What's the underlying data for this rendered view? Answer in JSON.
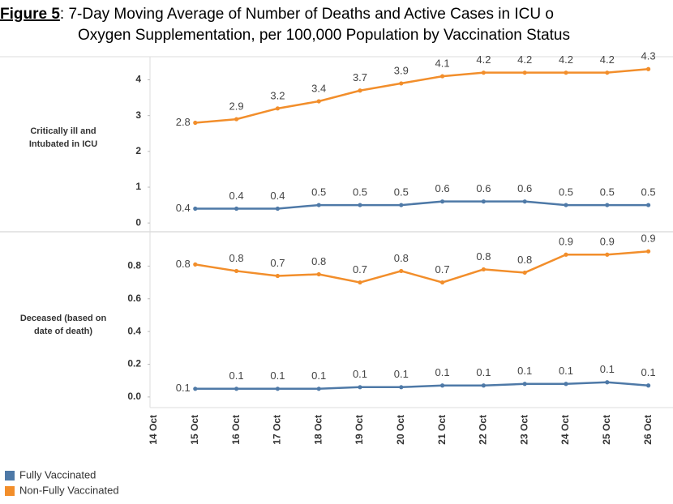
{
  "figure": {
    "label": "Figure 5",
    "title": [
      ": 7-Day Moving Average of Number of Deaths and Active Cases in ICU o",
      "Oxygen Supplementation, per 100,000 Population by Vaccination Status"
    ]
  },
  "chart_data": [
    {
      "type": "line",
      "title": [
        "Critically ill and",
        "Intubated in ICU"
      ],
      "ylim": [
        -0.2,
        4.6
      ],
      "yticks": [
        0,
        1,
        2,
        3,
        4
      ],
      "series": [
        {
          "name": "Fully Vaccinated",
          "color": "#4e79a7",
          "values": [
            null,
            0.4,
            0.4,
            0.4,
            0.5,
            0.5,
            0.5,
            0.6,
            0.6,
            0.6,
            0.5,
            0.5,
            0.5
          ]
        },
        {
          "name": "Non-Fully Vaccinated",
          "color": "#f28e2b",
          "values": [
            null,
            2.8,
            2.9,
            3.2,
            3.4,
            3.7,
            3.9,
            4.1,
            4.2,
            4.2,
            4.2,
            4.2,
            4.3
          ]
        }
      ]
    },
    {
      "type": "line",
      "title": [
        "Deceased (based on",
        "date of death)"
      ],
      "categories": [
        "14 Oct",
        "15 Oct",
        "16 Oct",
        "17 Oct",
        "18 Oct",
        "19 Oct",
        "20 Oct",
        "21 Oct",
        "22 Oct",
        "23 Oct",
        "24 Oct",
        "25 Oct",
        "26 Oct"
      ],
      "ylim": [
        -0.05,
        1.0
      ],
      "yticks": [
        {
          "value": 0,
          "label": "0.0"
        },
        0.2,
        0.4,
        0.6,
        0.8
      ],
      "series": [
        {
          "color": "#4e79a7",
          "values": [
            null,
            0.05,
            0.05,
            0.05,
            0.05,
            0.06,
            0.06,
            0.07,
            0.07,
            0.08,
            0.08,
            0.09,
            0.07
          ],
          "value_labels": [
            null,
            "0.1",
            "0.1",
            "0.1",
            "0.1",
            "0.1",
            "0.1",
            "0.1",
            "0.1",
            "0.1",
            "0.1",
            "0.1",
            "0.1"
          ]
        },
        {
          "color": "#f28e2b",
          "values": [
            null,
            0.81,
            0.77,
            0.74,
            0.75,
            0.7,
            0.77,
            0.7,
            0.78,
            0.76,
            0.87,
            0.87,
            0.89
          ],
          "value_labels": [
            null,
            "0.8",
            "0.8",
            "0.7",
            "0.8",
            "0.7",
            "0.8",
            "0.7",
            "0.8",
            "0.8",
            "0.9",
            "0.9",
            "0.9"
          ]
        }
      ]
    }
  ]
}
